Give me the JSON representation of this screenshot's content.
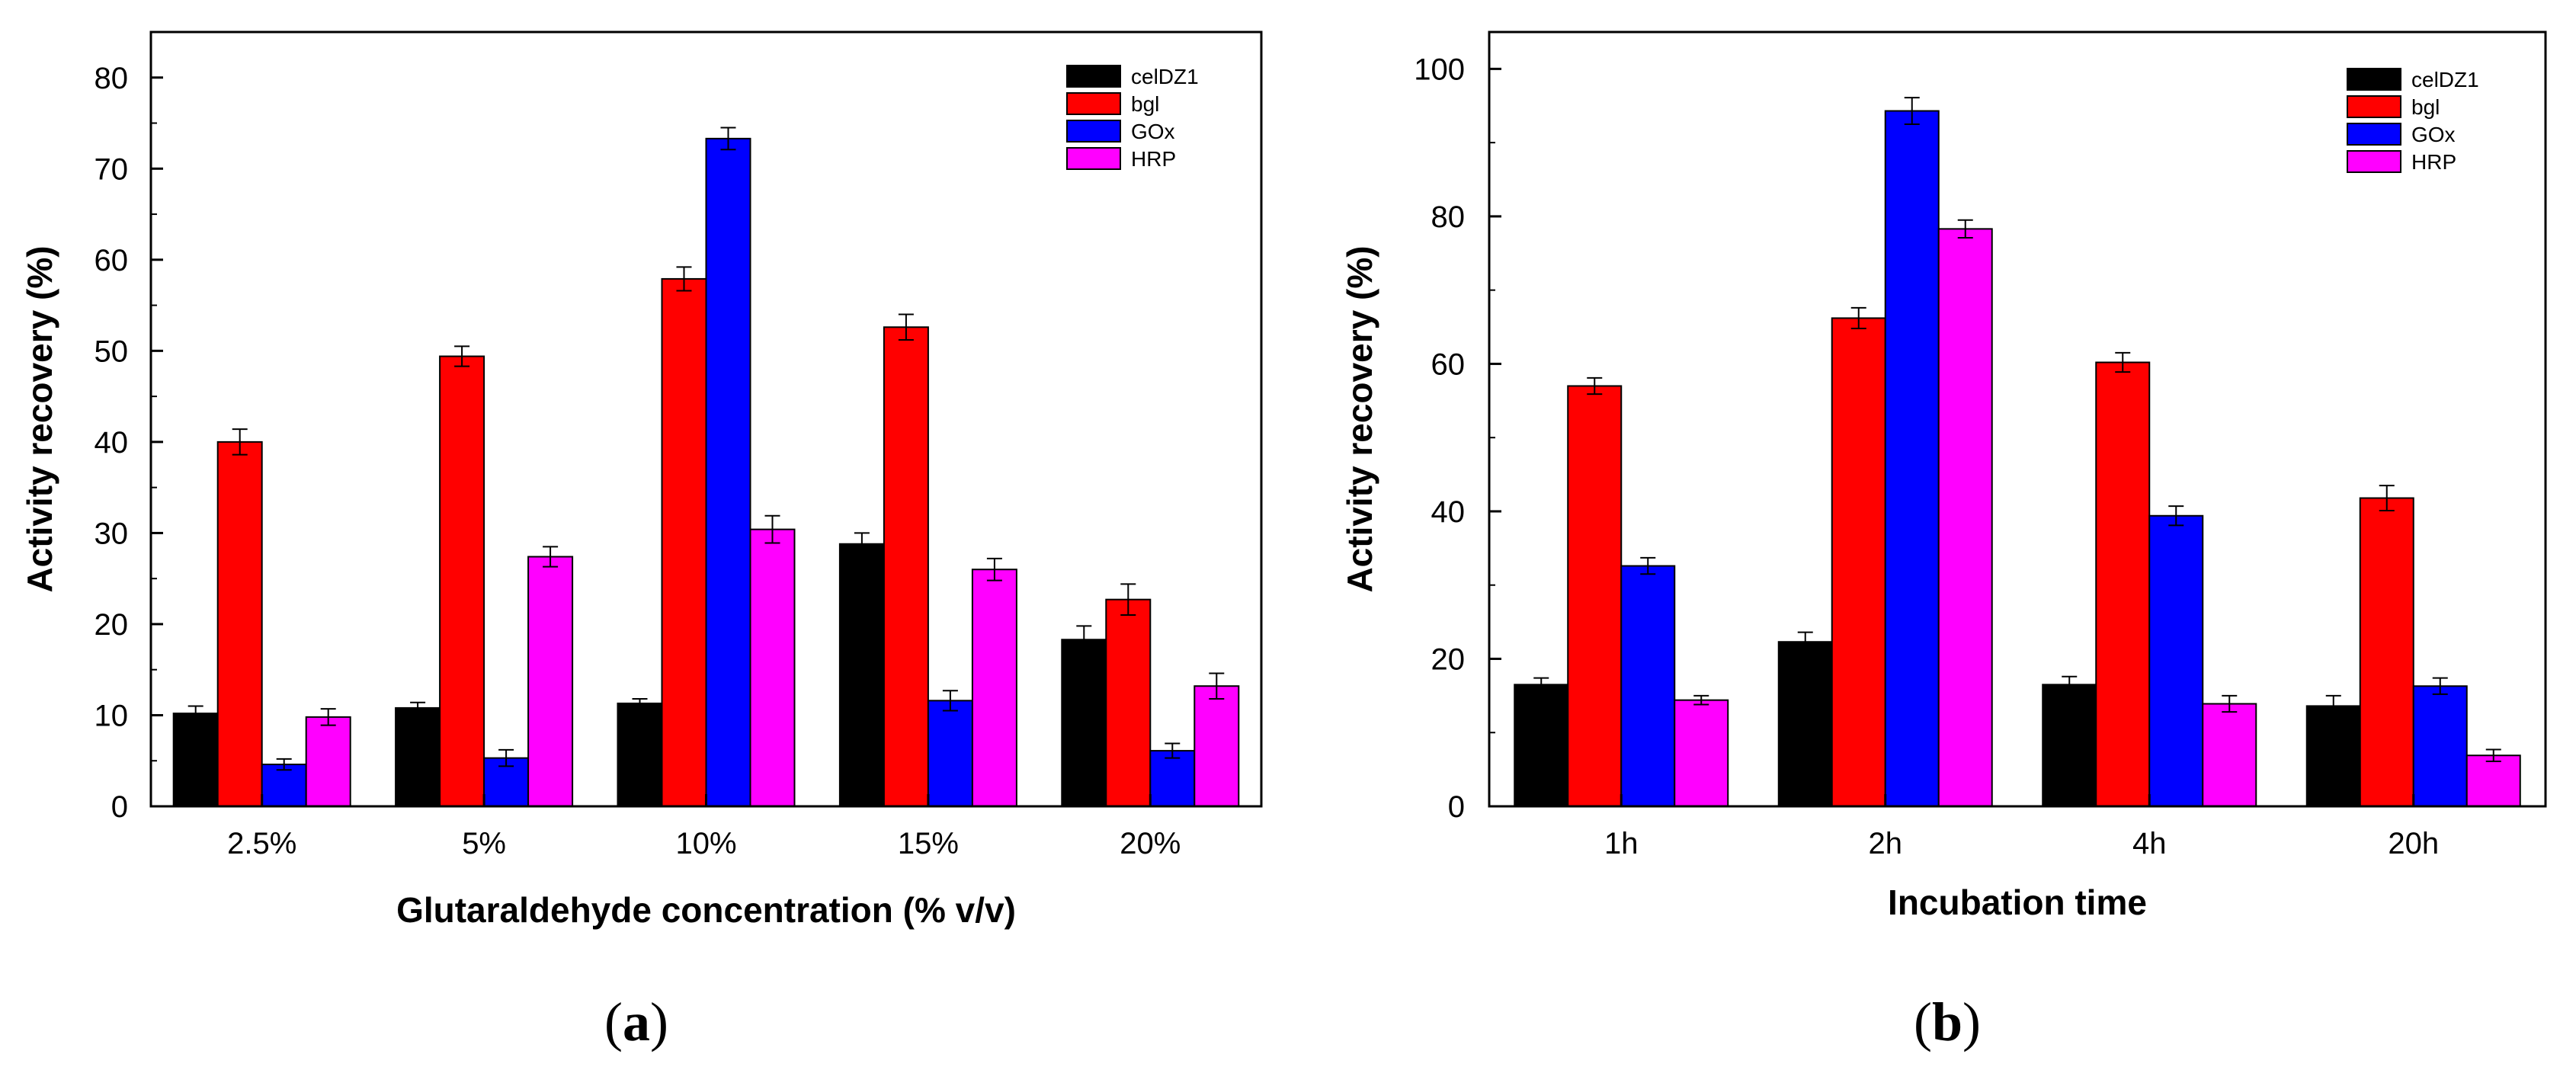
{
  "series_colors": {
    "celDZ1": "#000000",
    "bgl": "#ff0000",
    "GOx": "#0000ff",
    "HRP": "#ff00ff"
  },
  "chart_data": [
    {
      "type": "bar",
      "panel": "a",
      "xlabel": "Glutaraldehyde concentration (% v/v)",
      "ylabel": "Activity recovery (%)",
      "ylim": [
        0,
        85
      ],
      "yticks": [
        0,
        10,
        20,
        30,
        40,
        50,
        60,
        70,
        80
      ],
      "categories": [
        "2.5%",
        "5%",
        "10%",
        "15%",
        "20%"
      ],
      "legend_position": "top-right",
      "series": [
        {
          "name": "celDZ1",
          "values": [
            10.2,
            10.8,
            11.3,
            28.8,
            18.3
          ],
          "errors": [
            0.8,
            0.6,
            0.5,
            1.2,
            1.5
          ]
        },
        {
          "name": "bgl",
          "values": [
            40.0,
            49.4,
            57.9,
            52.6,
            22.7
          ],
          "errors": [
            1.4,
            1.1,
            1.3,
            1.4,
            1.7
          ]
        },
        {
          "name": "GOx",
          "values": [
            4.6,
            5.3,
            73.3,
            11.6,
            6.1
          ],
          "errors": [
            0.6,
            0.9,
            1.2,
            1.1,
            0.8
          ]
        },
        {
          "name": "HRP",
          "values": [
            9.8,
            27.4,
            30.4,
            26.0,
            13.2
          ],
          "errors": [
            0.9,
            1.1,
            1.5,
            1.2,
            1.4
          ]
        }
      ]
    },
    {
      "type": "bar",
      "panel": "b",
      "xlabel": "Incubation time",
      "ylabel": "Activity recovery (%)",
      "ylim": [
        0,
        105
      ],
      "yticks": [
        0,
        20,
        40,
        60,
        80,
        100
      ],
      "categories": [
        "1h",
        "2h",
        "4h",
        "20h"
      ],
      "legend_position": "top-right",
      "series": [
        {
          "name": "celDZ1",
          "values": [
            16.5,
            22.3,
            16.5,
            13.6
          ],
          "errors": [
            0.9,
            1.3,
            1.1,
            1.4
          ]
        },
        {
          "name": "bgl",
          "values": [
            57.0,
            66.2,
            60.2,
            41.8
          ],
          "errors": [
            1.1,
            1.4,
            1.3,
            1.7
          ]
        },
        {
          "name": "GOx",
          "values": [
            32.6,
            94.3,
            39.4,
            16.3
          ],
          "errors": [
            1.1,
            1.8,
            1.3,
            1.1
          ]
        },
        {
          "name": "HRP",
          "values": [
            14.4,
            78.3,
            13.9,
            6.9
          ],
          "errors": [
            0.6,
            1.2,
            1.1,
            0.8
          ]
        }
      ]
    }
  ],
  "panel_labels": {
    "a": {
      "open": "(",
      "letter": "a",
      "close": ")"
    },
    "b": {
      "open": "(",
      "letter": "b",
      "close": ")"
    }
  }
}
